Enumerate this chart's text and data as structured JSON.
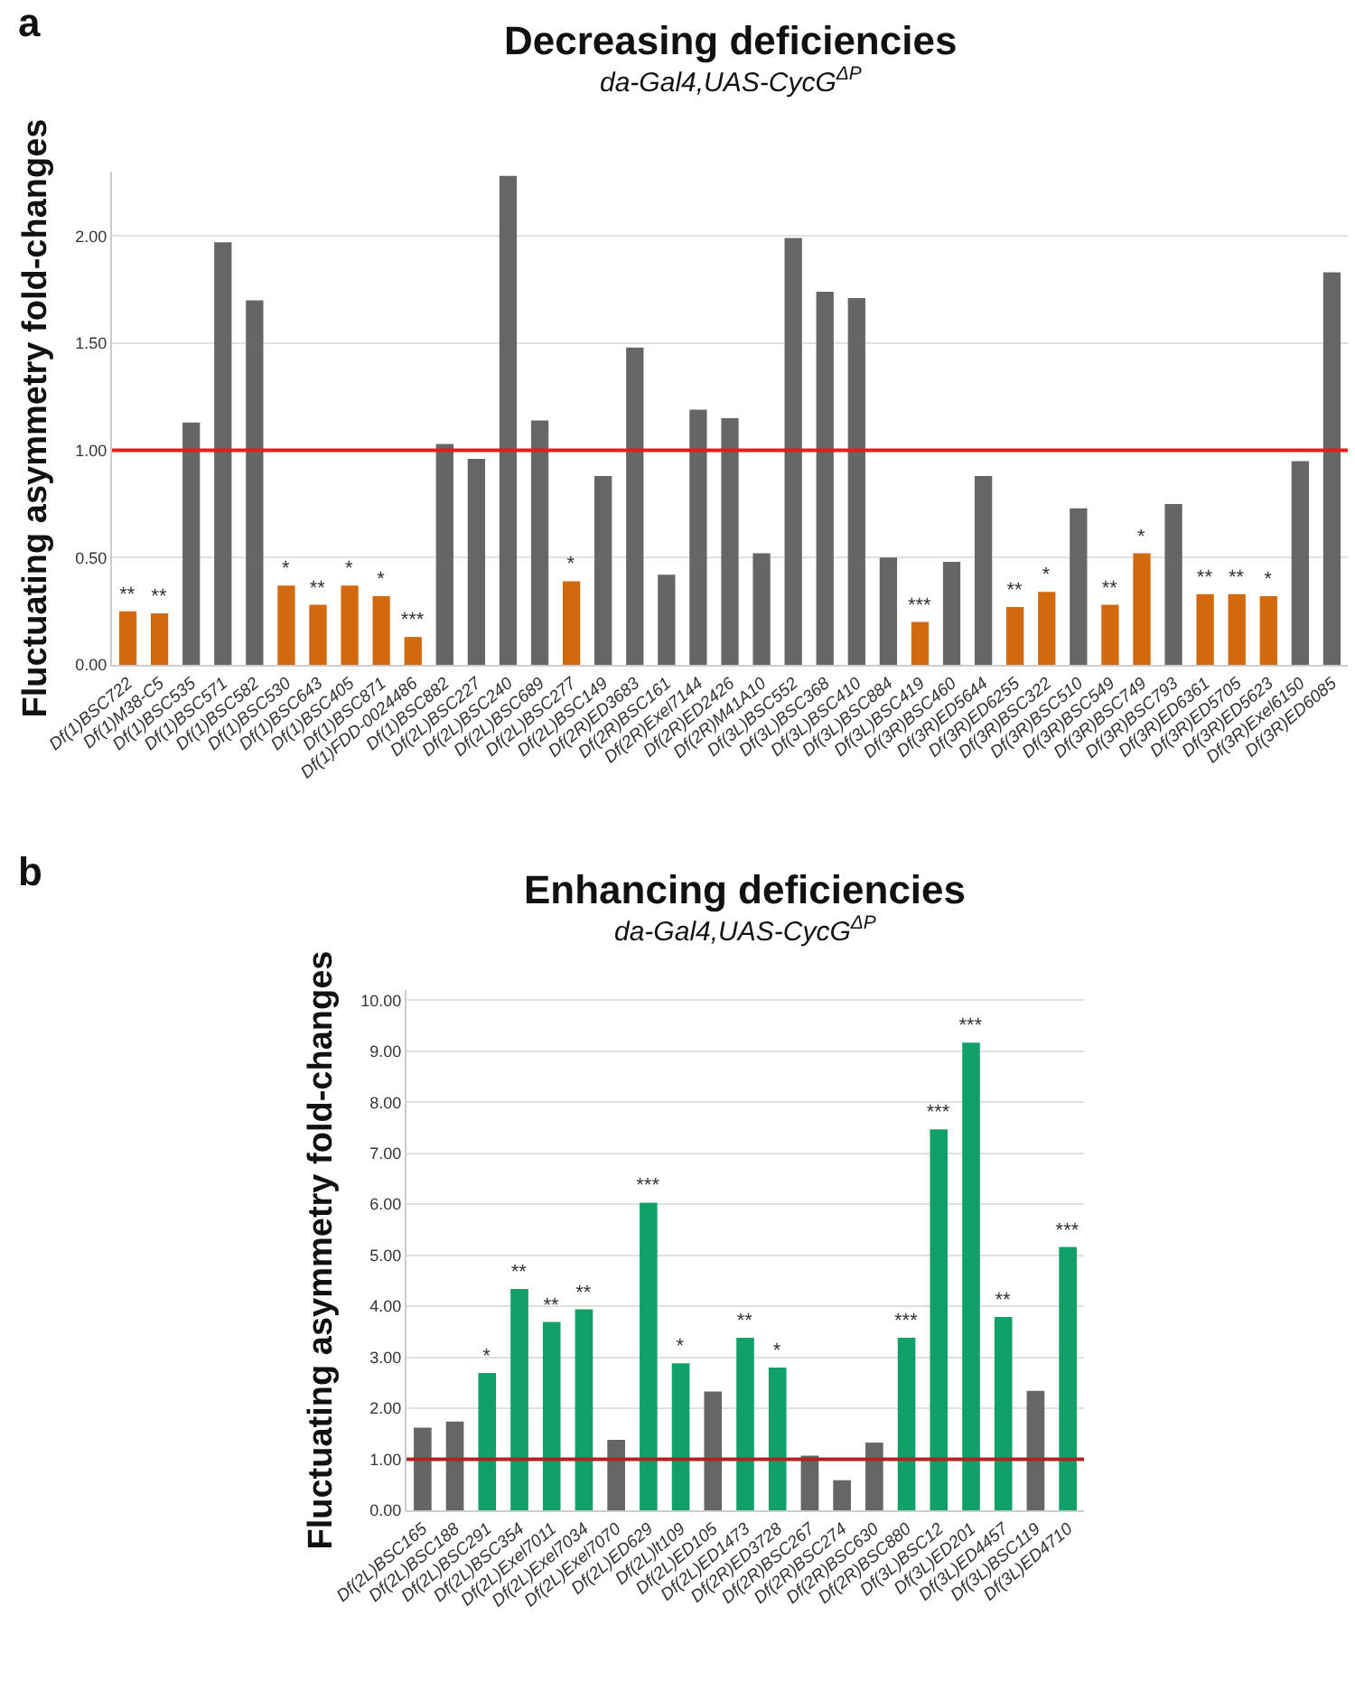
{
  "chart_data": [
    {
      "type": "bar",
      "title": "Decreasing deficiencies",
      "subtitle": "da-Gal4,UAS-CycG$^{ΔP}$",
      "ylabel": "Fluctuating asymmetry fold-changes",
      "annotations": [
        "a"
      ],
      "categories": [
        "Df(1)BSC722",
        "Df(1)M38-C5",
        "Df(1)BSC535",
        "Df(1)BSC571",
        "Df(1)BSC582",
        "Df(1)BSC530",
        "Df(1)BSC643",
        "Df(1)BSC405",
        "Df(1)BSC871",
        "Df(1)FDD-0024486",
        "Df(1)BSC882",
        "Df(2L)BSC227",
        "Df(2L)BSC240",
        "Df(2L)BSC689",
        "Df(2L)BSC277",
        "Df(2L)BSC149",
        "Df(2R)ED3683",
        "Df(2R)BSC161",
        "Df(2R)Exel7144",
        "Df(2R)ED2426",
        "Df(2R)M41A10",
        "Df(3L)BSC552",
        "Df(3L)BSC368",
        "Df(3L)BSC410",
        "Df(3L)BSC884",
        "Df(3L)BSC419",
        "Df(3R)BSC460",
        "Df(3R)ED5644",
        "Df(3R)ED6255",
        "Df(3R)BSC322",
        "Df(3R)BSC510",
        "Df(3R)BSC549",
        "Df(3R)BSC749",
        "Df(3R)BSC793",
        "Df(3R)ED6361",
        "Df(3R)ED5705",
        "Df(3R)ED5623",
        "Df(3R)Exel6150",
        "Df(3R)ED6085"
      ],
      "values": [
        0.25,
        0.24,
        1.13,
        1.97,
        1.7,
        0.37,
        0.28,
        0.37,
        0.32,
        0.13,
        1.03,
        0.96,
        2.28,
        1.14,
        0.39,
        0.88,
        1.48,
        0.42,
        1.19,
        1.15,
        0.52,
        1.99,
        1.74,
        1.71,
        0.5,
        0.2,
        0.48,
        0.88,
        0.27,
        0.34,
        0.73,
        0.28,
        0.52,
        0.75,
        0.33,
        0.33,
        0.32,
        0.95,
        1.83
      ],
      "colors": [
        "#d2690e",
        "#d2690e",
        "#666666",
        "#666666",
        "#666666",
        "#d2690e",
        "#d2690e",
        "#d2690e",
        "#d2690e",
        "#d2690e",
        "#666666",
        "#666666",
        "#666666",
        "#666666",
        "#d2690e",
        "#666666",
        "#666666",
        "#666666",
        "#666666",
        "#666666",
        "#666666",
        "#666666",
        "#666666",
        "#666666",
        "#666666",
        "#d2690e",
        "#666666",
        "#666666",
        "#d2690e",
        "#d2690e",
        "#666666",
        "#d2690e",
        "#d2690e",
        "#666666",
        "#d2690e",
        "#d2690e",
        "#d2690e",
        "#666666",
        "#666666"
      ],
      "value_labels": [
        "**",
        "**",
        null,
        null,
        null,
        "*",
        "**",
        "*",
        "*",
        "***",
        null,
        null,
        null,
        null,
        "*",
        null,
        null,
        null,
        null,
        null,
        null,
        null,
        null,
        null,
        null,
        "***",
        null,
        null,
        "**",
        "*",
        null,
        "**",
        "*",
        null,
        "**",
        "**",
        "*",
        null,
        null
      ],
      "ylim": [
        0,
        2.3
      ],
      "yticks": [
        {
          "value": 0,
          "label": "0.00"
        },
        {
          "value": 0.5,
          "label": "0.50"
        },
        {
          "value": 1,
          "label": "1.00"
        },
        {
          "value": 1.5,
          "label": "1.50"
        },
        {
          "value": 2,
          "label": "2.00"
        }
      ],
      "ref_lines": [
        {
          "axis": "y",
          "value": 1,
          "color": "#e0201b"
        }
      ],
      "grid": "y",
      "legend": false
    },
    {
      "type": "bar",
      "title": "Enhancing deficiencies",
      "subtitle": "da-Gal4,UAS-CycG$^{ΔP}$",
      "ylabel": "Fluctuating asymmetry fold-changes",
      "annotations": [
        "b"
      ],
      "categories": [
        "Df(2L)BSC165",
        "Df(2L)BSC188",
        "Df(2L)BSC291",
        "Df(2L)BSC354",
        "Df(2L)Exel7011",
        "Df(2L)Exel7034",
        "Df(2L)Exel7070",
        "Df(2L)ED629",
        "Df(2L)lt109",
        "Df(2L)ED105",
        "Df(2L)ED1473",
        "Df(2R)ED3728",
        "Df(2R)BSC267",
        "Df(2R)BSC274",
        "Df(2R)BSC630",
        "Df(2R)BSC880",
        "Df(3L)BSC12",
        "Df(3L)ED201",
        "Df(3L)ED4457",
        "Df(3L)BSC119",
        "Df(3L)ED4710"
      ],
      "values": [
        1.62,
        1.74,
        2.69,
        4.34,
        3.69,
        3.94,
        1.38,
        6.03,
        2.88,
        2.33,
        3.38,
        2.8,
        1.07,
        0.59,
        1.33,
        3.38,
        7.47,
        9.17,
        3.79,
        2.34,
        5.16
      ],
      "colors": [
        "#666666",
        "#666666",
        "#12a06a",
        "#12a06a",
        "#12a06a",
        "#12a06a",
        "#666666",
        "#12a06a",
        "#12a06a",
        "#666666",
        "#12a06a",
        "#12a06a",
        "#666666",
        "#666666",
        "#666666",
        "#12a06a",
        "#12a06a",
        "#12a06a",
        "#12a06a",
        "#666666",
        "#12a06a"
      ],
      "value_labels": [
        null,
        null,
        "*",
        "**",
        "**",
        "**",
        null,
        "***",
        "*",
        null,
        "**",
        "*",
        null,
        null,
        null,
        "***",
        "***",
        "***",
        "**",
        null,
        "***"
      ],
      "ylim": [
        0,
        10.2
      ],
      "yticks": [
        {
          "value": 0,
          "label": "0.00"
        },
        {
          "value": 1,
          "label": "1.00"
        },
        {
          "value": 2,
          "label": "2.00"
        },
        {
          "value": 3,
          "label": "3.00"
        },
        {
          "value": 4,
          "label": "4.00"
        },
        {
          "value": 5,
          "label": "5.00"
        },
        {
          "value": 6,
          "label": "6.00"
        },
        {
          "value": 7,
          "label": "7.00"
        },
        {
          "value": 8,
          "label": "8.00"
        },
        {
          "value": 9,
          "label": "9.00"
        },
        {
          "value": 10,
          "label": "10.00"
        }
      ],
      "ref_lines": [
        {
          "axis": "y",
          "value": 1,
          "color": "#b22222"
        }
      ],
      "grid": "y",
      "legend": false
    }
  ]
}
